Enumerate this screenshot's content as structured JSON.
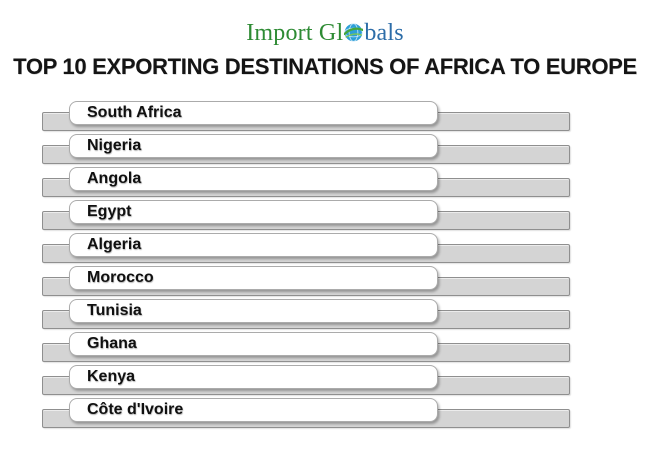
{
  "logo": {
    "text_prefix": "Import Gl",
    "text_suffix": "bals",
    "full_name": "Import Globals"
  },
  "colors": {
    "logo_green": "#2e8b34",
    "logo_blue": "#2d6da8",
    "globe_blue": "#2d9fd8",
    "globe_green": "#46a63c",
    "bar_fill": "#d4d4d4",
    "bar_border": "#8f8f8f",
    "box_border": "#ababab",
    "title_color": "#141414"
  },
  "title": "TOP 10 EXPORTING DESTINATIONS OF AFRICA TO EUROPE",
  "chart_data": {
    "type": "bar",
    "title": "TOP 10 EXPORTING DESTINATIONS OF AFRICA TO EUROPE",
    "orientation": "horizontal",
    "categories": [
      "South Africa",
      "Nigeria",
      "Angola",
      "Egypt",
      "Algeria",
      "Morocco",
      "Tunisia",
      "Ghana",
      "Kenya",
      "Côte d'Ivoire"
    ],
    "values_labeled": false,
    "bars_equal_length": true,
    "axes_shown": false,
    "grid": false,
    "legend": "none"
  }
}
